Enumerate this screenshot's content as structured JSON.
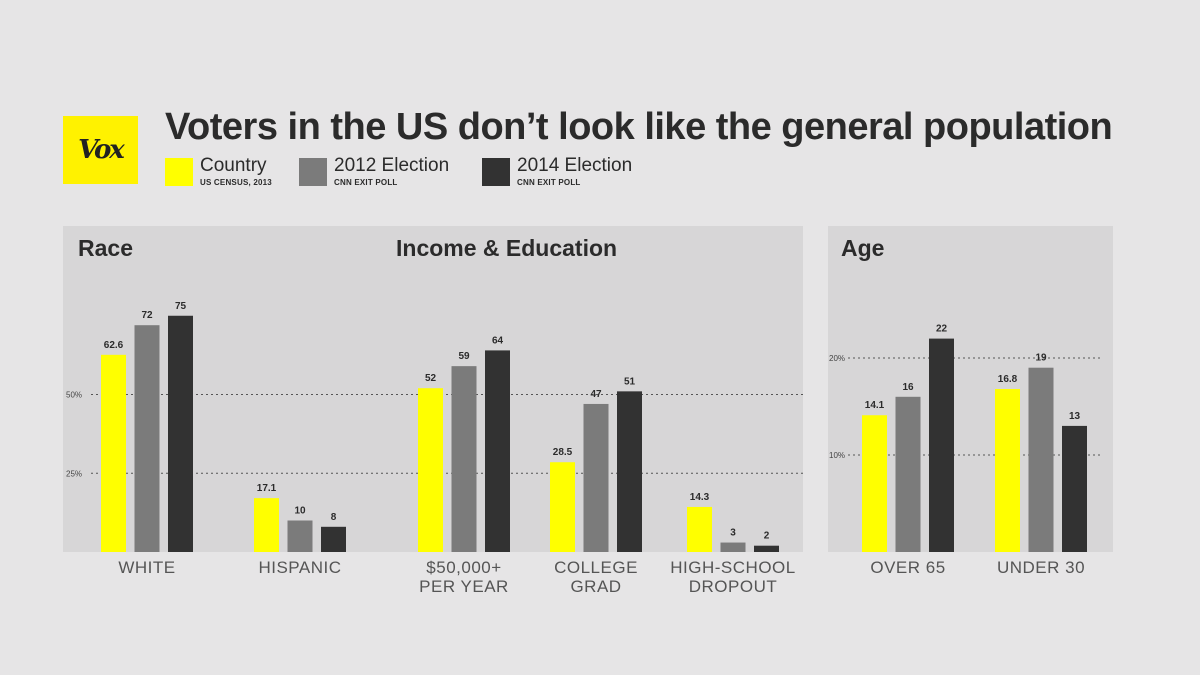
{
  "logo": {
    "text": "Vox"
  },
  "title": "Voters in the US don’t look like the general population",
  "legend": [
    {
      "label": "Country",
      "source": "US CENSUS, 2013",
      "color": "#ffff00"
    },
    {
      "label": "2012 Election",
      "source": "CNN EXIT POLL",
      "color": "#7b7b7b"
    },
    {
      "label": "2014 Election",
      "source": "CNN EXIT POLL",
      "color": "#323232"
    }
  ],
  "chart_data": [
    {
      "type": "bar",
      "panel_titles": [
        "Race",
        "Income & Education"
      ],
      "categories": [
        "WHITE",
        "HISPANIC",
        "$50,000+\nPER YEAR",
        "COLLEGE\nGRAD",
        "HIGH-SCHOOL\nDROPOUT"
      ],
      "series": [
        {
          "name": "Country",
          "values": [
            62.6,
            17.1,
            52,
            28.5,
            14.3
          ],
          "labels": [
            "62.6",
            "17.1",
            "52",
            "28.5",
            "14.3"
          ]
        },
        {
          "name": "2012 Election",
          "values": [
            72,
            10,
            59,
            47,
            3
          ],
          "labels": [
            "72",
            "10",
            "59",
            "47",
            "3"
          ]
        },
        {
          "name": "2014 Election",
          "values": [
            75,
            8,
            64,
            51,
            2
          ],
          "labels": [
            "75",
            "8",
            "64",
            "51",
            "2"
          ]
        }
      ],
      "gridlines": [
        {
          "value": 50,
          "label": "50%"
        },
        {
          "value": 25,
          "label": "25%"
        }
      ],
      "ylim": [
        0,
        80
      ]
    },
    {
      "type": "bar",
      "panel_titles": [
        "Age"
      ],
      "categories": [
        "OVER 65",
        "UNDER 30"
      ],
      "series": [
        {
          "name": "Country",
          "values": [
            14.1,
            16.8
          ],
          "labels": [
            "14.1",
            "16.8"
          ]
        },
        {
          "name": "2012 Election",
          "values": [
            16,
            19
          ],
          "labels": [
            "16",
            "19"
          ]
        },
        {
          "name": "2014 Election",
          "values": [
            22,
            13
          ],
          "labels": [
            "22",
            "13"
          ]
        }
      ],
      "gridlines": [
        {
          "value": 20,
          "label": "20%"
        },
        {
          "value": 10,
          "label": "10%"
        }
      ],
      "ylim": [
        0,
        22
      ]
    }
  ]
}
